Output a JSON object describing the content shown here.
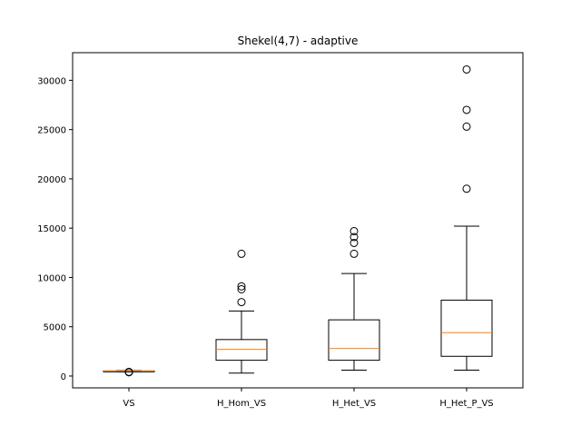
{
  "chart_data": {
    "type": "box",
    "title": "Shekel(4,7) - adaptive",
    "xlabel": "",
    "ylabel": "",
    "ylim": [
      -1200,
      32800
    ],
    "yticks": [
      0,
      5000,
      10000,
      15000,
      20000,
      25000,
      30000
    ],
    "grid": false,
    "colors": {
      "box": "#000000",
      "median": "#ff7f0e",
      "background": "#ffffff"
    },
    "categories": [
      "VS",
      "H_Hom_VS",
      "H_Het_VS",
      "H_Het_P_VS"
    ],
    "boxes": [
      {
        "name": "VS",
        "whisker_low": 430,
        "q1": 470,
        "median": 500,
        "q3": 520,
        "whisker_high": 540,
        "outliers": [
          380,
          420
        ]
      },
      {
        "name": "H_Hom_VS",
        "whisker_low": 300,
        "q1": 1600,
        "median": 2700,
        "q3": 3700,
        "whisker_high": 6600,
        "outliers": [
          7500,
          8800,
          9100,
          12400
        ]
      },
      {
        "name": "H_Het_VS",
        "whisker_low": 600,
        "q1": 1600,
        "median": 2800,
        "q3": 5700,
        "whisker_high": 10400,
        "outliers": [
          12400,
          13500,
          14100,
          14700
        ]
      },
      {
        "name": "H_Het_P_VS",
        "whisker_low": 600,
        "q1": 2000,
        "median": 4400,
        "q3": 7700,
        "whisker_high": 15200,
        "outliers": [
          19000,
          25300,
          27000,
          31100
        ]
      }
    ]
  }
}
